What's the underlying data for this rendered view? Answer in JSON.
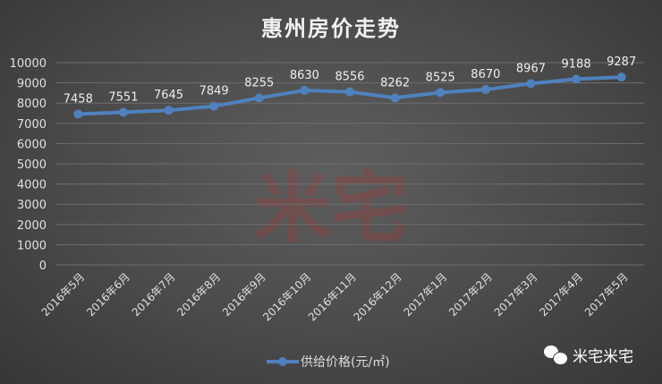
{
  "chart_data": {
    "type": "line",
    "title": "惠州房价走势",
    "categories": [
      "2016年5月",
      "2016年6月",
      "2016年7月",
      "2016年8月",
      "2016年9月",
      "2016年10月",
      "2016年11月",
      "2016年12月",
      "2017年1月",
      "2017年2月",
      "2017年3月",
      "2017年4月",
      "2017年5月"
    ],
    "series": [
      {
        "name": "供给价格(元/㎡)",
        "values": [
          7458,
          7551,
          7645,
          7849,
          8255,
          8630,
          8556,
          8262,
          8525,
          8670,
          8967,
          9188,
          9287
        ],
        "color": "#4f81bd"
      }
    ],
    "ylim": [
      0,
      10000
    ],
    "yticks": [
      0,
      1000,
      2000,
      3000,
      4000,
      5000,
      6000,
      7000,
      8000,
      9000,
      10000
    ],
    "grid": true,
    "legend": "bottom"
  },
  "watermark": "米宅",
  "brand": {
    "label": "米宅米宅",
    "icon": "wechat-icon"
  }
}
